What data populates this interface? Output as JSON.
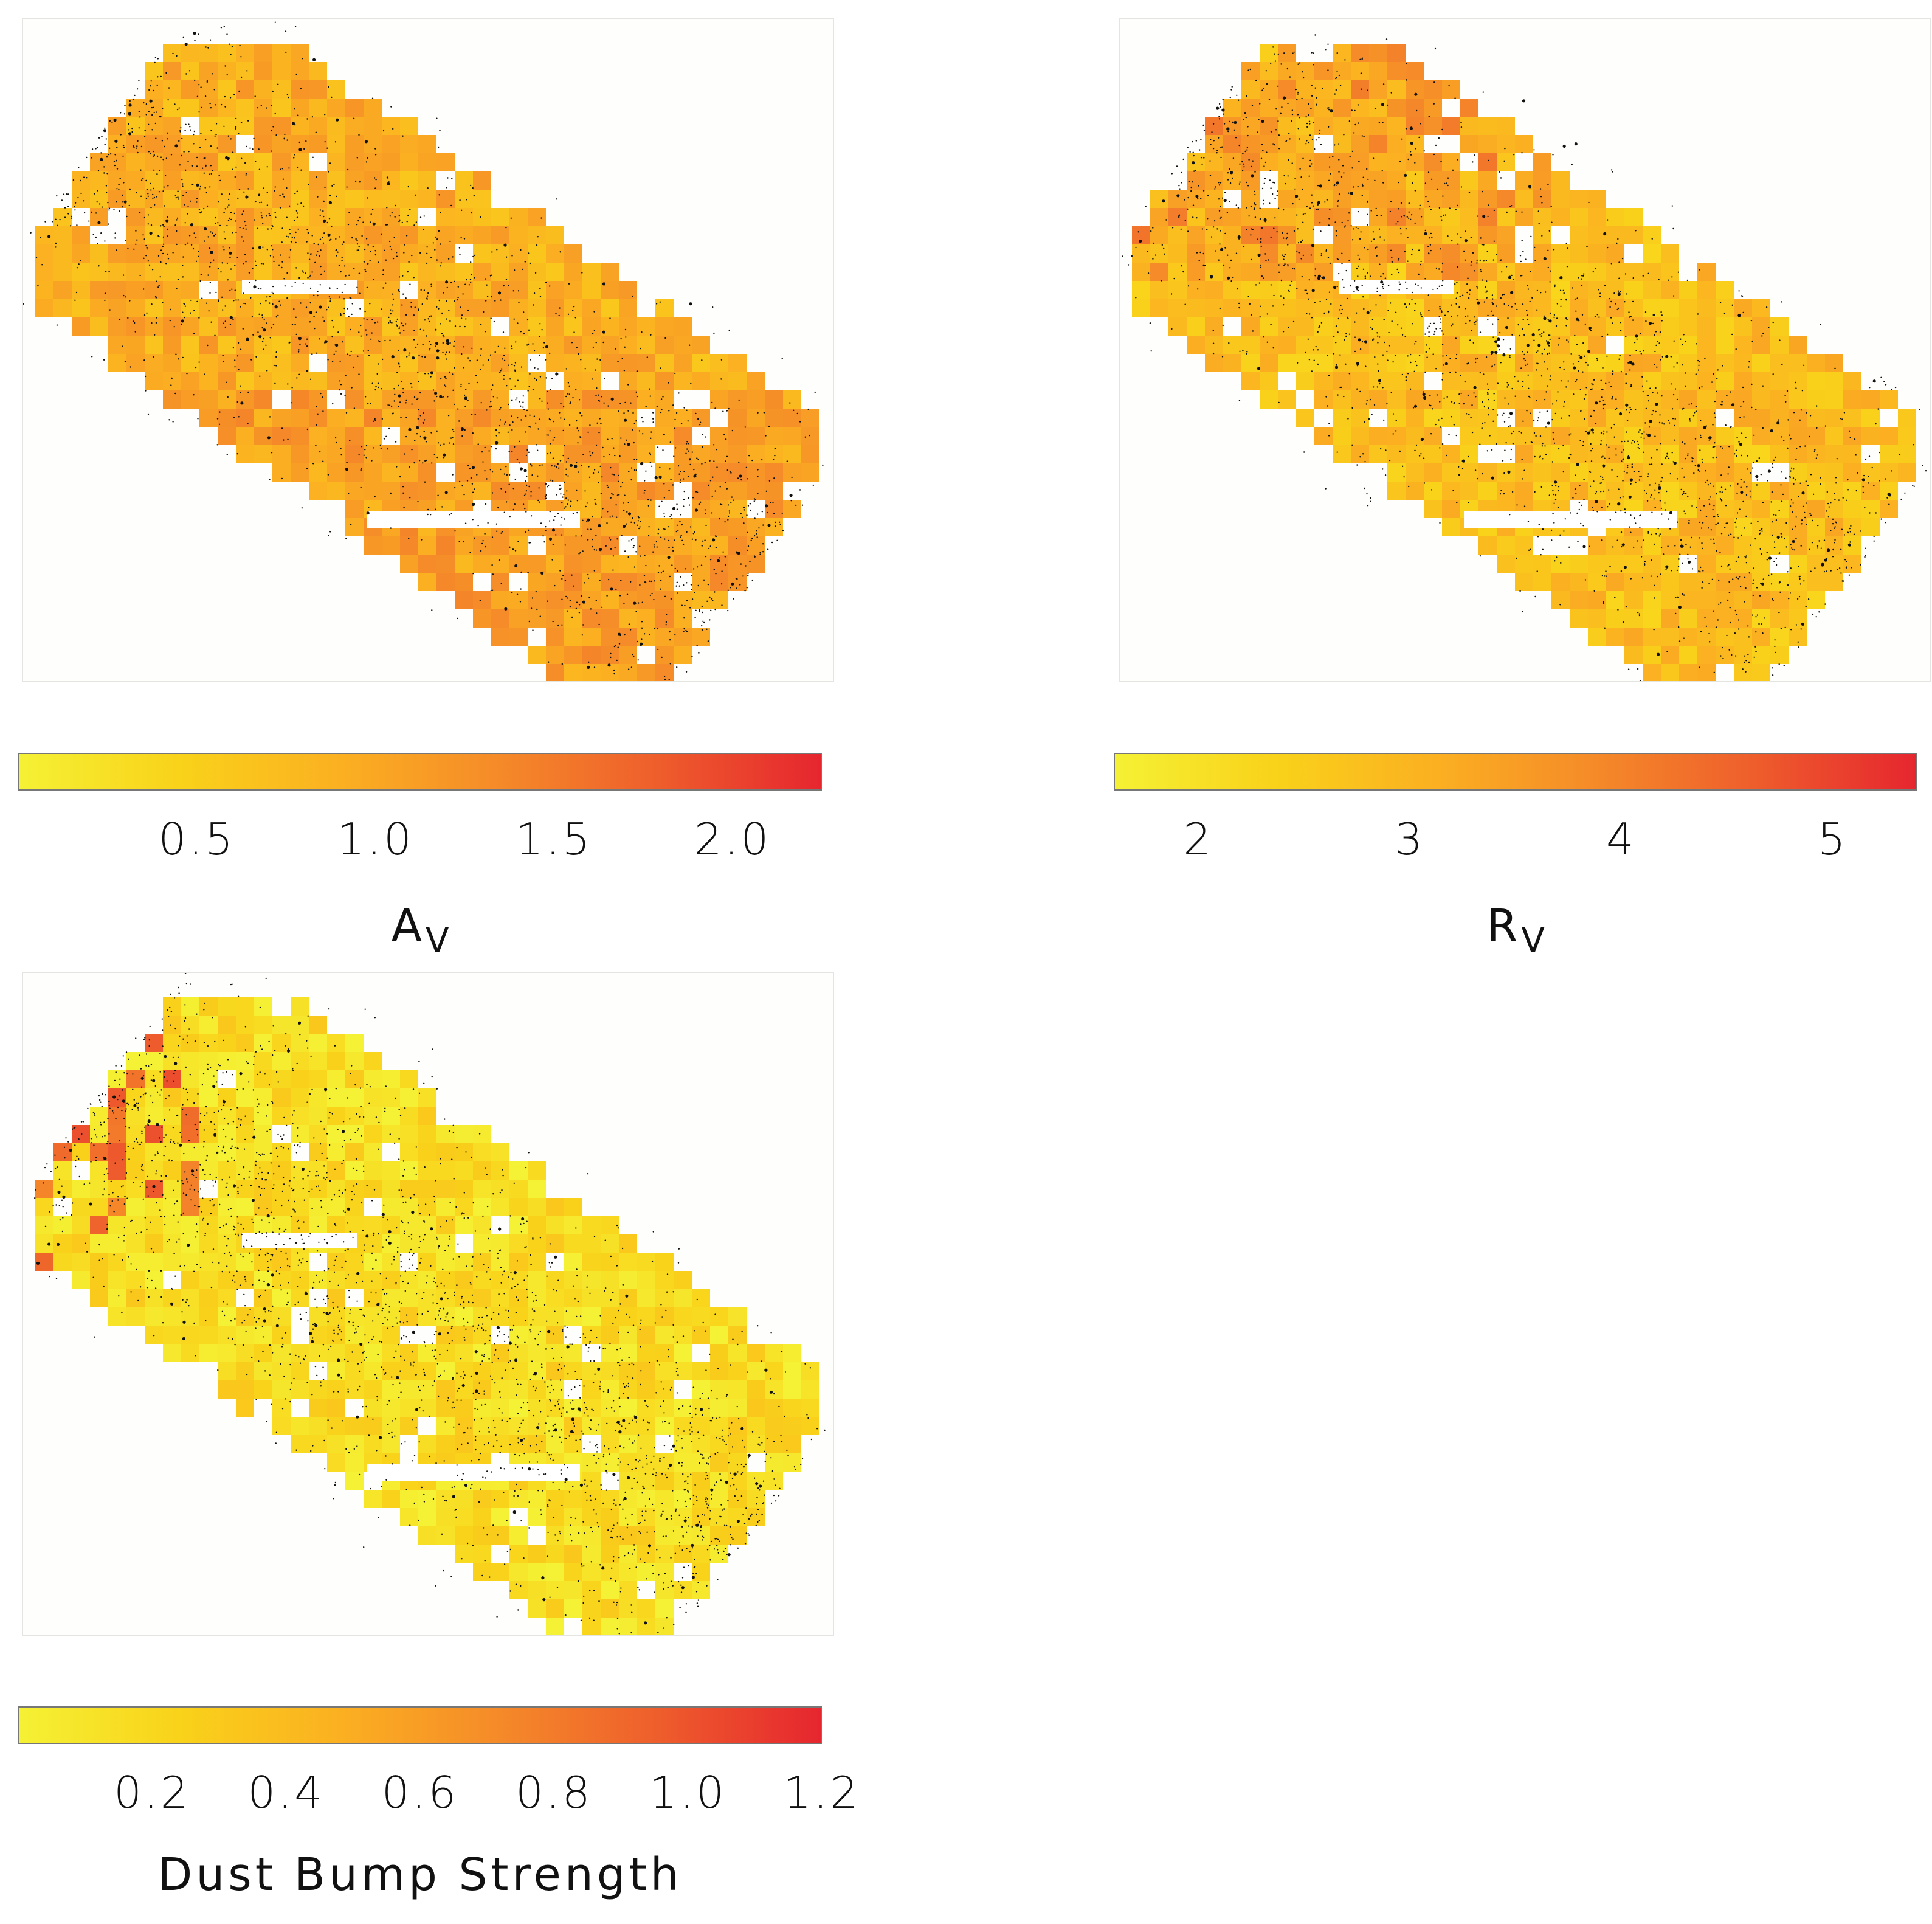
{
  "colormap": [
    "#f5f134",
    "#f9d21a",
    "#fbb021",
    "#f58a29",
    "#ee5d2c",
    "#e6262f"
  ],
  "chart_data": [
    {
      "type": "heatmap",
      "quantity": {
        "symbol": "A",
        "subscript": "V"
      },
      "colorbar": {
        "min": 0.0,
        "max": 2.25,
        "ticks": [
          "0.5",
          "1.0",
          "1.5",
          "2.0"
        ],
        "tick_values": [
          0.5,
          1.0,
          1.5,
          2.0
        ]
      },
      "typical_value": 0.9,
      "map_summary": "pixelated dust map over a tilted galaxy disk with overplotted black stars"
    },
    {
      "type": "heatmap",
      "quantity": {
        "symbol": "R",
        "subscript": "V"
      },
      "colorbar": {
        "min": 1.6,
        "max": 5.4,
        "ticks": [
          "2",
          "3",
          "4",
          "5"
        ],
        "tick_values": [
          2,
          3,
          4,
          5
        ]
      },
      "typical_value": 2.8,
      "map_summary": "higher values concentrated in the upper-left region"
    },
    {
      "type": "heatmap",
      "quantity": {
        "label": "Dust Bump Strength"
      },
      "colorbar": {
        "min": 0.0,
        "max": 1.2,
        "ticks": [
          "0.2",
          "0.4",
          "0.6",
          "0.8",
          "1.0",
          "1.2"
        ],
        "tick_values": [
          0.2,
          0.4,
          0.6,
          0.8,
          1.0,
          1.2
        ]
      },
      "typical_value": 0.15,
      "map_summary": "mostly low values with a few high pixels on the left edge"
    }
  ],
  "panels": {
    "av": {
      "label_main": "A",
      "label_sub": "V"
    },
    "rv": {
      "label_main": "R",
      "label_sub": "V"
    },
    "bump": {
      "label_main": "Dust Bump Strength",
      "label_sub": ""
    }
  }
}
